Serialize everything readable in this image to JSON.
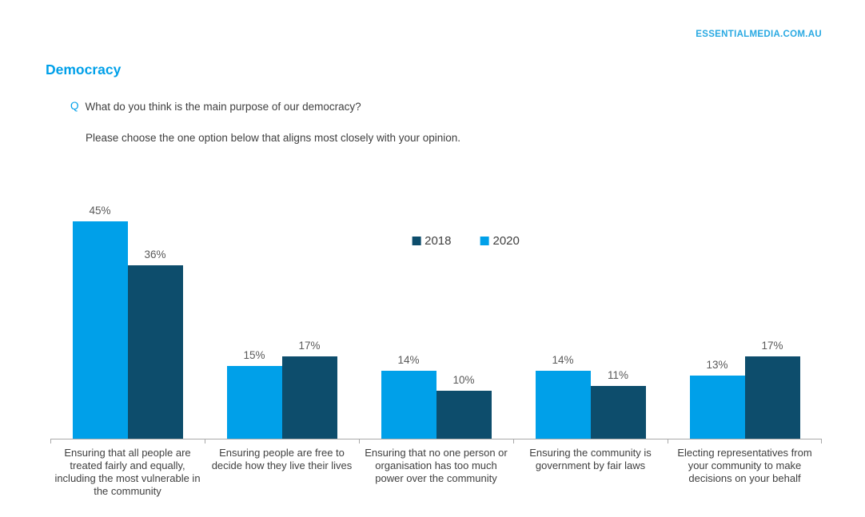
{
  "page": {
    "site_link": "ESSENTIALMEDIA.COM.AU",
    "title": "Democracy"
  },
  "question": {
    "marker": "Q",
    "text": "What do you think is the main purpose of our democracy?",
    "instruction": "Please choose the one option below that aligns most closely with your opinion."
  },
  "colors": {
    "accent_blue": "#00a0e9",
    "dark_navy": "#0d4d6c",
    "value_label_gray": "#595959",
    "text_dark": "#3f3f3f",
    "axis_gray": "#a9a9a9"
  },
  "chart_data": {
    "type": "bar",
    "title": "",
    "categories": [
      "Ensuring that all people are treated fairly and equally, including the most vulnerable in the community",
      "Ensuring people are free to decide how they live their lives",
      "Ensuring that no one person or organisation has too much power over the community",
      "Ensuring the community is government by fair laws",
      "Electing representatives from your community to make decisions on your behalf"
    ],
    "series": [
      {
        "name": "2018",
        "color": "#0d4d6c",
        "values": [
          36,
          17,
          10,
          11,
          17
        ]
      },
      {
        "name": "2020",
        "color": "#00a0e9",
        "values": [
          45,
          15,
          14,
          14,
          13
        ]
      }
    ],
    "bar_display_order": [
      "2020",
      "2018"
    ],
    "legend_order": [
      "2018",
      "2020"
    ],
    "legend_position": "top-center",
    "value_suffix": "%",
    "ylim": [
      0,
      50
    ],
    "grid": false
  }
}
